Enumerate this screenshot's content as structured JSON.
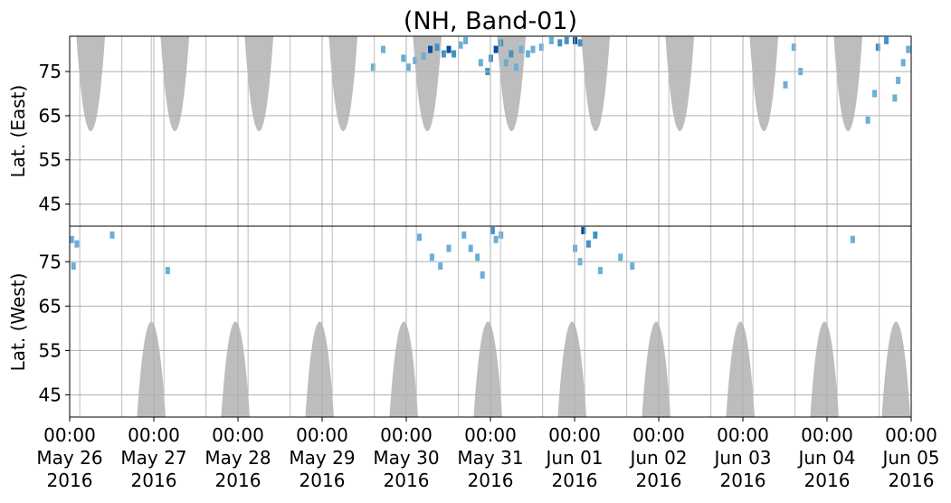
{
  "chart_data": {
    "type": "heatmap",
    "title": "(NH, Band-01)",
    "panels": [
      {
        "name": "east",
        "ylabel": "Lat. (East)",
        "ylim": [
          40,
          83
        ],
        "yticks": [
          45,
          55,
          65,
          75
        ],
        "orientation": "normal"
      },
      {
        "name": "west",
        "ylabel": "Lat. (West)",
        "ylim": [
          40,
          83
        ],
        "yticks": [
          75,
          65,
          55,
          45
        ],
        "orientation": "inverted"
      }
    ],
    "x_axis": {
      "start": "2016-05-26 00:00",
      "end": "2016-06-05 00:00",
      "tick_labels": [
        [
          "00:00",
          "May 26",
          "2016"
        ],
        [
          "00:00",
          "May 27",
          "2016"
        ],
        [
          "00:00",
          "May 28",
          "2016"
        ],
        [
          "00:00",
          "May 29",
          "2016"
        ],
        [
          "00:00",
          "May 30",
          "2016"
        ],
        [
          "00:00",
          "May 31",
          "2016"
        ],
        [
          "00:00",
          "Jun 01",
          "2016"
        ],
        [
          "00:00",
          "Jun 02",
          "2016"
        ],
        [
          "00:00",
          "Jun 03",
          "2016"
        ],
        [
          "00:00",
          "Jun 04",
          "2016"
        ],
        [
          "00:00",
          "Jun 05",
          "2016"
        ]
      ]
    },
    "grid": true,
    "colors": {
      "no_data": "#bdbdbd",
      "value_low": "#6baed6",
      "value_mid": "#4292c6",
      "value_high": "#08519c",
      "grid": "#b0b0b0"
    },
    "no_data_regions": [
      {
        "panel": "east",
        "day_center": 0.25,
        "half_width": 0.17,
        "lat_edge": 61.5
      },
      {
        "panel": "east",
        "day_center": 1.25,
        "half_width": 0.17,
        "lat_edge": 61.5
      },
      {
        "panel": "east",
        "day_center": 2.25,
        "half_width": 0.17,
        "lat_edge": 61.5
      },
      {
        "panel": "east",
        "day_center": 3.25,
        "half_width": 0.17,
        "lat_edge": 61.5
      },
      {
        "panel": "east",
        "day_center": 4.25,
        "half_width": 0.17,
        "lat_edge": 61.5
      },
      {
        "panel": "east",
        "day_center": 5.25,
        "half_width": 0.17,
        "lat_edge": 61.5
      },
      {
        "panel": "east",
        "day_center": 6.25,
        "half_width": 0.17,
        "lat_edge": 61.5
      },
      {
        "panel": "east",
        "day_center": 7.25,
        "half_width": 0.17,
        "lat_edge": 61.5
      },
      {
        "panel": "east",
        "day_center": 8.25,
        "half_width": 0.17,
        "lat_edge": 61.5
      },
      {
        "panel": "east",
        "day_center": 9.25,
        "half_width": 0.17,
        "lat_edge": 61.5
      },
      {
        "panel": "west",
        "day_center": 0.97,
        "half_width": 0.17,
        "lat_edge": 61.5
      },
      {
        "panel": "west",
        "day_center": 1.97,
        "half_width": 0.17,
        "lat_edge": 61.5
      },
      {
        "panel": "west",
        "day_center": 2.97,
        "half_width": 0.17,
        "lat_edge": 61.5
      },
      {
        "panel": "west",
        "day_center": 3.97,
        "half_width": 0.17,
        "lat_edge": 61.5
      },
      {
        "panel": "west",
        "day_center": 4.97,
        "half_width": 0.17,
        "lat_edge": 61.5
      },
      {
        "panel": "west",
        "day_center": 5.97,
        "half_width": 0.17,
        "lat_edge": 61.5
      },
      {
        "panel": "west",
        "day_center": 6.97,
        "half_width": 0.17,
        "lat_edge": 61.5
      },
      {
        "panel": "west",
        "day_center": 7.97,
        "half_width": 0.17,
        "lat_edge": 61.5
      },
      {
        "panel": "west",
        "day_center": 8.97,
        "half_width": 0.17,
        "lat_edge": 61.5
      },
      {
        "panel": "west",
        "day_center": 9.82,
        "half_width": 0.17,
        "lat_edge": 61.5
      }
    ],
    "gap_lines_days": [
      0.12,
      0.62,
      0.97,
      1.12,
      1.62,
      2.12,
      2.62,
      3.12,
      3.62,
      4.12,
      4.62,
      5.12,
      5.62,
      6.12,
      6.62,
      7.12,
      7.62,
      8.12,
      8.62,
      9.12,
      9.62
    ],
    "points": [
      {
        "panel": "east",
        "day": 3.6,
        "lat": 76,
        "level": "low"
      },
      {
        "panel": "east",
        "day": 3.72,
        "lat": 80,
        "level": "low"
      },
      {
        "panel": "east",
        "day": 3.96,
        "lat": 78,
        "level": "low"
      },
      {
        "panel": "east",
        "day": 4.02,
        "lat": 76,
        "level": "low"
      },
      {
        "panel": "east",
        "day": 4.1,
        "lat": 77.5,
        "level": "low"
      },
      {
        "panel": "east",
        "day": 4.2,
        "lat": 78.5,
        "level": "low"
      },
      {
        "panel": "east",
        "day": 4.28,
        "lat": 80,
        "level": "high"
      },
      {
        "panel": "east",
        "day": 4.36,
        "lat": 80.5,
        "level": "mid"
      },
      {
        "panel": "east",
        "day": 4.44,
        "lat": 79,
        "level": "mid"
      },
      {
        "panel": "east",
        "day": 4.5,
        "lat": 80,
        "level": "high"
      },
      {
        "panel": "east",
        "day": 4.56,
        "lat": 79,
        "level": "mid"
      },
      {
        "panel": "east",
        "day": 4.64,
        "lat": 81,
        "level": "low"
      },
      {
        "panel": "east",
        "day": 4.7,
        "lat": 82,
        "level": "low"
      },
      {
        "panel": "east",
        "day": 4.88,
        "lat": 77,
        "level": "low"
      },
      {
        "panel": "east",
        "day": 4.96,
        "lat": 75,
        "level": "mid"
      },
      {
        "panel": "east",
        "day": 5.0,
        "lat": 78,
        "level": "mid"
      },
      {
        "panel": "east",
        "day": 5.06,
        "lat": 80,
        "level": "high"
      },
      {
        "panel": "east",
        "day": 5.12,
        "lat": 81.5,
        "level": "mid"
      },
      {
        "panel": "east",
        "day": 5.18,
        "lat": 77,
        "level": "low"
      },
      {
        "panel": "east",
        "day": 5.24,
        "lat": 79,
        "level": "mid"
      },
      {
        "panel": "east",
        "day": 5.3,
        "lat": 76,
        "level": "low"
      },
      {
        "panel": "east",
        "day": 5.36,
        "lat": 80,
        "level": "low"
      },
      {
        "panel": "east",
        "day": 5.44,
        "lat": 79,
        "level": "low"
      },
      {
        "panel": "east",
        "day": 5.5,
        "lat": 80,
        "level": "low"
      },
      {
        "panel": "east",
        "day": 5.6,
        "lat": 80.5,
        "level": "low"
      },
      {
        "panel": "east",
        "day": 5.72,
        "lat": 82,
        "level": "low"
      },
      {
        "panel": "east",
        "day": 5.82,
        "lat": 81.5,
        "level": "mid"
      },
      {
        "panel": "east",
        "day": 5.9,
        "lat": 82,
        "level": "mid"
      },
      {
        "panel": "east",
        "day": 6.0,
        "lat": 82,
        "level": "high"
      },
      {
        "panel": "east",
        "day": 6.06,
        "lat": 81.5,
        "level": "mid"
      },
      {
        "panel": "east",
        "day": 8.5,
        "lat": 72,
        "level": "low"
      },
      {
        "panel": "east",
        "day": 8.6,
        "lat": 80.5,
        "level": "low"
      },
      {
        "panel": "east",
        "day": 8.68,
        "lat": 75,
        "level": "low"
      },
      {
        "panel": "east",
        "day": 9.48,
        "lat": 64,
        "level": "low"
      },
      {
        "panel": "east",
        "day": 9.56,
        "lat": 70,
        "level": "low"
      },
      {
        "panel": "east",
        "day": 9.6,
        "lat": 80.5,
        "level": "mid"
      },
      {
        "panel": "east",
        "day": 9.7,
        "lat": 82,
        "level": "mid"
      },
      {
        "panel": "east",
        "day": 9.8,
        "lat": 69,
        "level": "low"
      },
      {
        "panel": "east",
        "day": 9.84,
        "lat": 73,
        "level": "low"
      },
      {
        "panel": "east",
        "day": 9.9,
        "lat": 77,
        "level": "low"
      },
      {
        "panel": "east",
        "day": 9.96,
        "lat": 80,
        "level": "low"
      },
      {
        "panel": "west",
        "day": 0.02,
        "lat": 80,
        "level": "low"
      },
      {
        "panel": "west",
        "day": 0.08,
        "lat": 79,
        "level": "low"
      },
      {
        "panel": "west",
        "day": 0.04,
        "lat": 74,
        "level": "low"
      },
      {
        "panel": "west",
        "day": 0.5,
        "lat": 81,
        "level": "low"
      },
      {
        "panel": "west",
        "day": 1.16,
        "lat": 73,
        "level": "low"
      },
      {
        "panel": "west",
        "day": 4.15,
        "lat": 80.5,
        "level": "low"
      },
      {
        "panel": "west",
        "day": 4.3,
        "lat": 76,
        "level": "low"
      },
      {
        "panel": "west",
        "day": 4.4,
        "lat": 74,
        "level": "low"
      },
      {
        "panel": "west",
        "day": 4.5,
        "lat": 78,
        "level": "low"
      },
      {
        "panel": "west",
        "day": 4.68,
        "lat": 81,
        "level": "low"
      },
      {
        "panel": "west",
        "day": 4.76,
        "lat": 78,
        "level": "low"
      },
      {
        "panel": "west",
        "day": 4.84,
        "lat": 76,
        "level": "low"
      },
      {
        "panel": "west",
        "day": 4.9,
        "lat": 72,
        "level": "low"
      },
      {
        "panel": "west",
        "day": 5.02,
        "lat": 82,
        "level": "mid"
      },
      {
        "panel": "west",
        "day": 5.06,
        "lat": 80,
        "level": "low"
      },
      {
        "panel": "west",
        "day": 5.12,
        "lat": 81,
        "level": "low"
      },
      {
        "panel": "west",
        "day": 6.0,
        "lat": 78,
        "level": "low"
      },
      {
        "panel": "west",
        "day": 6.06,
        "lat": 75,
        "level": "low"
      },
      {
        "panel": "west",
        "day": 6.1,
        "lat": 82,
        "level": "high"
      },
      {
        "panel": "west",
        "day": 6.16,
        "lat": 79,
        "level": "mid"
      },
      {
        "panel": "west",
        "day": 6.24,
        "lat": 81,
        "level": "mid"
      },
      {
        "panel": "west",
        "day": 6.3,
        "lat": 73,
        "level": "low"
      },
      {
        "panel": "west",
        "day": 6.54,
        "lat": 76,
        "level": "low"
      },
      {
        "panel": "west",
        "day": 6.68,
        "lat": 74,
        "level": "low"
      },
      {
        "panel": "west",
        "day": 9.3,
        "lat": 80,
        "level": "low"
      }
    ]
  }
}
